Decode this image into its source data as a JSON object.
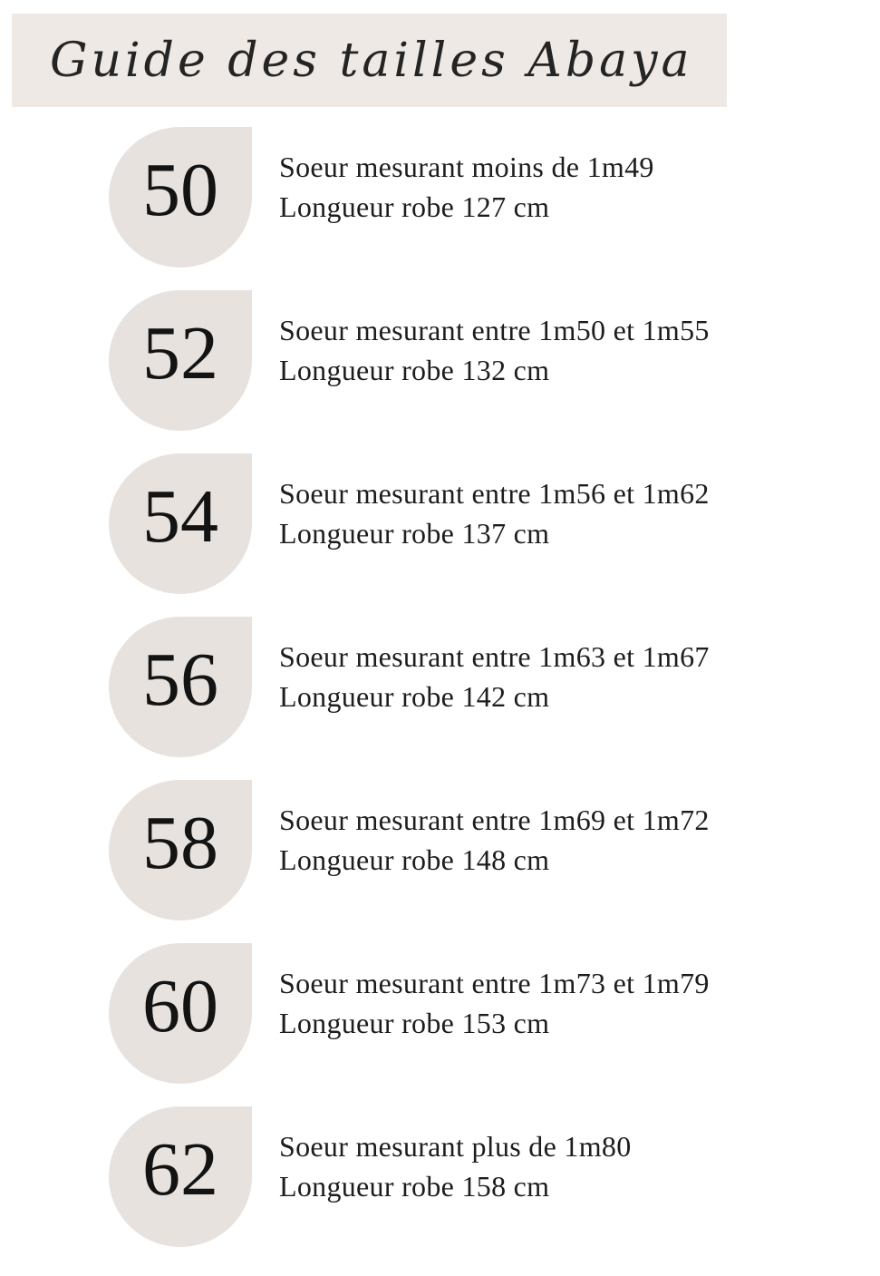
{
  "theme": {
    "page_background": "#FFFFFF",
    "banner_background": "#EFE9E5",
    "badge_background": "#E8E2DE",
    "text_color": "#1D1D1D"
  },
  "header": {
    "title": "Guide des tailles Abaya"
  },
  "rows": [
    {
      "size": "50",
      "line1": "Soeur mesurant moins de 1m49",
      "line2": "Longueur robe 127 cm"
    },
    {
      "size": "52",
      "line1": "Soeur mesurant entre 1m50 et 1m55",
      "line2": "Longueur robe 132 cm"
    },
    {
      "size": "54",
      "line1": "Soeur mesurant entre 1m56 et 1m62",
      "line2": "Longueur robe 137 cm"
    },
    {
      "size": "56",
      "line1": "Soeur mesurant entre 1m63 et 1m67",
      "line2": "Longueur robe 142 cm"
    },
    {
      "size": "58",
      "line1": "Soeur mesurant entre 1m69 et 1m72",
      "line2": "Longueur robe 148 cm"
    },
    {
      "size": "60",
      "line1": "Soeur mesurant entre 1m73 et 1m79",
      "line2": "Longueur robe 153 cm"
    },
    {
      "size": "62",
      "line1": "Soeur mesurant plus de 1m80",
      "line2": "Longueur robe 158 cm"
    }
  ]
}
